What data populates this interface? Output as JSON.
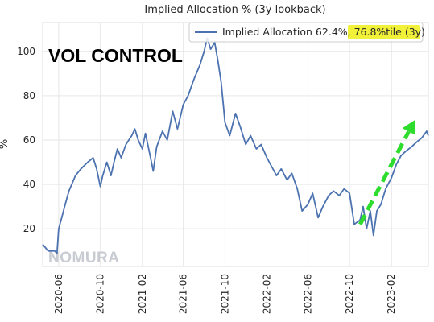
{
  "chart_data": {
    "type": "line",
    "title": "Implied Allocation % (3y lookback)",
    "xlabel": "",
    "ylabel": "%",
    "ylim": [
      3,
      113
    ],
    "xlim": [
      "2020-04-15",
      "2023-05-20"
    ],
    "yticks": [
      "20",
      "40",
      "60",
      "80",
      "100"
    ],
    "ytick_values": [
      20,
      40,
      60,
      80,
      100
    ],
    "xticks": [
      "2020-06",
      "2020-10",
      "2021-02",
      "2021-06",
      "2021-10",
      "2022-02",
      "2022-06",
      "2022-10",
      "2023-02"
    ],
    "xtick_values": [
      "2020-06-01",
      "2020-10-01",
      "2021-02-01",
      "2021-06-01",
      "2021-10-01",
      "2022-02-01",
      "2022-06-01",
      "2022-10-01",
      "2023-02-01"
    ],
    "grid": true,
    "legend_position": "top-right",
    "legend_prefix": "Implied Allocation 62.4%, ",
    "legend_highlight": "76.8%tile (3y)",
    "legend_highlight_color": "#f1f13a",
    "line_color": "#4c72b0",
    "series": [
      {
        "values": [
          [
            "2020-04-15",
            13
          ],
          [
            "2020-05-01",
            10
          ],
          [
            "2020-05-20",
            10
          ],
          [
            "2020-05-27",
            9
          ],
          [
            "2020-06-01",
            20
          ],
          [
            "2020-06-08",
            24
          ],
          [
            "2020-06-20",
            31
          ],
          [
            "2020-07-01",
            37
          ],
          [
            "2020-07-20",
            44
          ],
          [
            "2020-08-05",
            47
          ],
          [
            "2020-08-25",
            50
          ],
          [
            "2020-09-10",
            52
          ],
          [
            "2020-09-20",
            47
          ],
          [
            "2020-10-01",
            39
          ],
          [
            "2020-10-08",
            44
          ],
          [
            "2020-10-20",
            50
          ],
          [
            "2020-11-01",
            44
          ],
          [
            "2020-11-10",
            50
          ],
          [
            "2020-11-20",
            56
          ],
          [
            "2020-12-01",
            52
          ],
          [
            "2020-12-15",
            58
          ],
          [
            "2021-01-01",
            62
          ],
          [
            "2021-01-10",
            65
          ],
          [
            "2021-01-20",
            60
          ],
          [
            "2021-02-01",
            56
          ],
          [
            "2021-02-10",
            63
          ],
          [
            "2021-02-25",
            52
          ],
          [
            "2021-03-05",
            46
          ],
          [
            "2021-03-15",
            57
          ],
          [
            "2021-04-01",
            64
          ],
          [
            "2021-04-15",
            60
          ],
          [
            "2021-05-01",
            73
          ],
          [
            "2021-05-15",
            65
          ],
          [
            "2021-06-01",
            76
          ],
          [
            "2021-06-15",
            80
          ],
          [
            "2021-07-01",
            87
          ],
          [
            "2021-07-20",
            94
          ],
          [
            "2021-08-01",
            100
          ],
          [
            "2021-08-10",
            106
          ],
          [
            "2021-08-20",
            101
          ],
          [
            "2021-09-01",
            104
          ],
          [
            "2021-09-10",
            96
          ],
          [
            "2021-09-20",
            86
          ],
          [
            "2021-10-01",
            68
          ],
          [
            "2021-10-15",
            62
          ],
          [
            "2021-11-01",
            72
          ],
          [
            "2021-11-15",
            66
          ],
          [
            "2021-12-01",
            58
          ],
          [
            "2021-12-15",
            62
          ],
          [
            "2022-01-01",
            56
          ],
          [
            "2022-01-15",
            58
          ],
          [
            "2022-02-01",
            52
          ],
          [
            "2022-02-15",
            48
          ],
          [
            "2022-03-01",
            44
          ],
          [
            "2022-03-15",
            47
          ],
          [
            "2022-04-01",
            42
          ],
          [
            "2022-04-15",
            45
          ],
          [
            "2022-05-01",
            38
          ],
          [
            "2022-05-15",
            28
          ],
          [
            "2022-06-01",
            31
          ],
          [
            "2022-06-15",
            36
          ],
          [
            "2022-07-01",
            25
          ],
          [
            "2022-07-15",
            30
          ],
          [
            "2022-08-01",
            35
          ],
          [
            "2022-08-15",
            37
          ],
          [
            "2022-09-01",
            35
          ],
          [
            "2022-09-15",
            38
          ],
          [
            "2022-10-01",
            36
          ],
          [
            "2022-10-15",
            22
          ],
          [
            "2022-11-01",
            24
          ],
          [
            "2022-11-10",
            30
          ],
          [
            "2022-11-20",
            20
          ],
          [
            "2022-12-01",
            28
          ],
          [
            "2022-12-10",
            17
          ],
          [
            "2022-12-20",
            28
          ],
          [
            "2023-01-01",
            31
          ],
          [
            "2023-01-15",
            38
          ],
          [
            "2023-02-01",
            43
          ],
          [
            "2023-02-15",
            49
          ],
          [
            "2023-03-01",
            53
          ],
          [
            "2023-03-15",
            55
          ],
          [
            "2023-04-01",
            57
          ],
          [
            "2023-04-15",
            59
          ],
          [
            "2023-05-01",
            61
          ],
          [
            "2023-05-15",
            64
          ],
          [
            "2023-05-20",
            62
          ]
        ]
      }
    ],
    "annotation_text": "VOL CONTROL",
    "annotation_arrow": {
      "color": "#2edc2e",
      "from": [
        "2022-11-01",
        22
      ],
      "to": [
        "2023-04-10",
        69
      ]
    },
    "watermark": "NOMURA"
  }
}
